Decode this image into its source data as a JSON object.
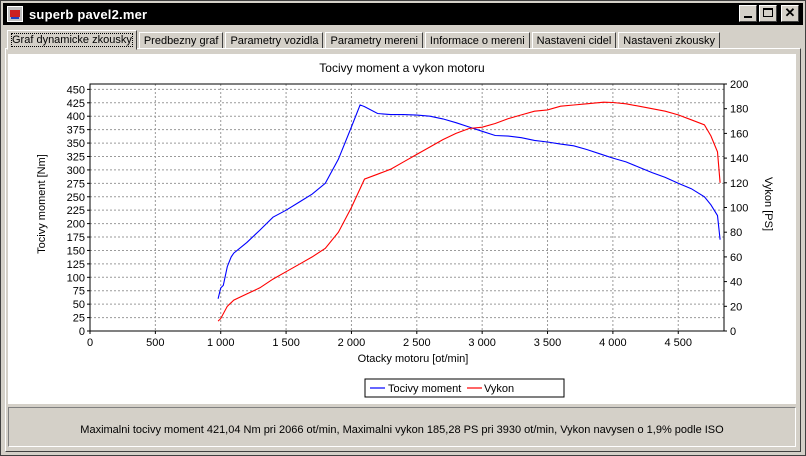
{
  "window": {
    "title": "superb pavel2.mer",
    "icon": "app-icon"
  },
  "tabs": [
    {
      "label": "Graf dynamicke zkousky",
      "active": true
    },
    {
      "label": "Predbezny graf",
      "active": false
    },
    {
      "label": "Parametry vozidla",
      "active": false
    },
    {
      "label": "Parametry mereni",
      "active": false
    },
    {
      "label": "Informace o mereni",
      "active": false
    },
    {
      "label": "Nastaveni cidel",
      "active": false
    },
    {
      "label": "Nastaveni zkousky",
      "active": false
    }
  ],
  "chart_data": {
    "type": "line",
    "title": "Tocivy moment a vykon motoru",
    "xlabel": "Otacky motoru [ot/min]",
    "ylabel": "Tocivy moment [Nm]",
    "y2label": "Vykon [PS]",
    "xlim": [
      0,
      4850
    ],
    "ylim": [
      0,
      460
    ],
    "y2lim": [
      0,
      200
    ],
    "x_ticks": [
      "0",
      "500",
      "1 000",
      "1 500",
      "2 000",
      "2 500",
      "3 000",
      "3 500",
      "4 000",
      "4 500"
    ],
    "y_ticks": [
      "0",
      "25",
      "50",
      "75",
      "100",
      "125",
      "150",
      "175",
      "200",
      "225",
      "250",
      "275",
      "300",
      "325",
      "350",
      "375",
      "400",
      "425",
      "450"
    ],
    "y2_ticks": [
      "0",
      "20",
      "40",
      "60",
      "80",
      "100",
      "120",
      "140",
      "160",
      "180",
      "200"
    ],
    "grid": true,
    "legend_placement": "bottom-center",
    "series": [
      {
        "name": "Tocivy moment",
        "axis": "left",
        "color": "#0000ff",
        "x": [
          980,
          1000,
          1020,
          1050,
          1080,
          1100,
          1200,
          1300,
          1400,
          1500,
          1600,
          1700,
          1800,
          1900,
          2000,
          2066,
          2100,
          2200,
          2300,
          2400,
          2500,
          2600,
          2700,
          2800,
          2900,
          3000,
          3100,
          3200,
          3300,
          3400,
          3500,
          3600,
          3700,
          3800,
          3900,
          4000,
          4100,
          4200,
          4300,
          4400,
          4500,
          4600,
          4700,
          4750,
          4800,
          4820
        ],
        "y": [
          60,
          80,
          85,
          120,
          138,
          145,
          165,
          188,
          212,
          225,
          240,
          255,
          275,
          320,
          380,
          421,
          418,
          405,
          403,
          403,
          402,
          400,
          395,
          388,
          380,
          372,
          364,
          363,
          360,
          355,
          352,
          348,
          345,
          338,
          330,
          322,
          315,
          305,
          295,
          286,
          275,
          265,
          250,
          235,
          215,
          170
        ]
      },
      {
        "name": "Vykon",
        "axis": "right",
        "color": "#ff0000",
        "x": [
          980,
          1000,
          1050,
          1100,
          1200,
          1300,
          1400,
          1500,
          1600,
          1700,
          1800,
          1900,
          2000,
          2100,
          2200,
          2300,
          2400,
          2500,
          2600,
          2700,
          2800,
          2900,
          3000,
          3100,
          3200,
          3300,
          3400,
          3500,
          3600,
          3700,
          3800,
          3930,
          4000,
          4100,
          4200,
          4300,
          4400,
          4500,
          4600,
          4700,
          4750,
          4800,
          4820
        ],
        "y": [
          8,
          10,
          20,
          25,
          30,
          35,
          42,
          48,
          54,
          60,
          67,
          80,
          100,
          123,
          127,
          131,
          137,
          143,
          149,
          155,
          160,
          164,
          165,
          168,
          172,
          175,
          178,
          179,
          182,
          183,
          184,
          185.28,
          185,
          184,
          182,
          180,
          178,
          175,
          171,
          167,
          158,
          145,
          120
        ]
      }
    ]
  },
  "status": {
    "text": "Maximalni tocivy moment 421,04 Nm pri 2066 ot/min,  Maximalni vykon 185,28 PS pri 3930 ot/min,  Vykon navysen o 1,9% podle ISO"
  }
}
